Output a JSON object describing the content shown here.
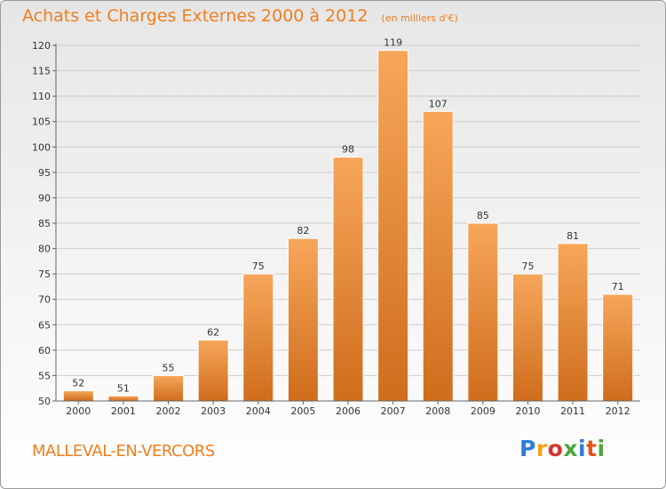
{
  "header": {
    "title": "Achats et Charges Externes 2000 à 2012",
    "subtitle": "(en milliers d'€)"
  },
  "footer": {
    "commune": "MALLEVAL-EN-VERCORS",
    "brand": "Proxiti",
    "brand_letters": [
      "P",
      "r",
      "o",
      "x",
      "i",
      "t",
      "i"
    ]
  },
  "colors": {
    "accent": "#f07e1e",
    "bar_top": "#f7a65a",
    "bar_bottom": "#cf6d1c",
    "grid": "#cccccc",
    "axis": "#666666"
  },
  "chart_data": {
    "type": "bar",
    "title": "Achats et Charges Externes 2000 à 2012",
    "subtitle": "(en milliers d'€)",
    "categories": [
      "2000",
      "2001",
      "2002",
      "2003",
      "2004",
      "2005",
      "2006",
      "2007",
      "2008",
      "2009",
      "2010",
      "2011",
      "2012"
    ],
    "values": [
      52,
      51,
      55,
      62,
      75,
      82,
      98,
      119,
      107,
      85,
      75,
      81,
      71
    ],
    "ylim": [
      50,
      120
    ],
    "yticks": [
      50,
      55,
      60,
      65,
      70,
      75,
      80,
      85,
      90,
      95,
      100,
      105,
      110,
      115,
      120
    ],
    "grid": true,
    "data_labels": true
  }
}
